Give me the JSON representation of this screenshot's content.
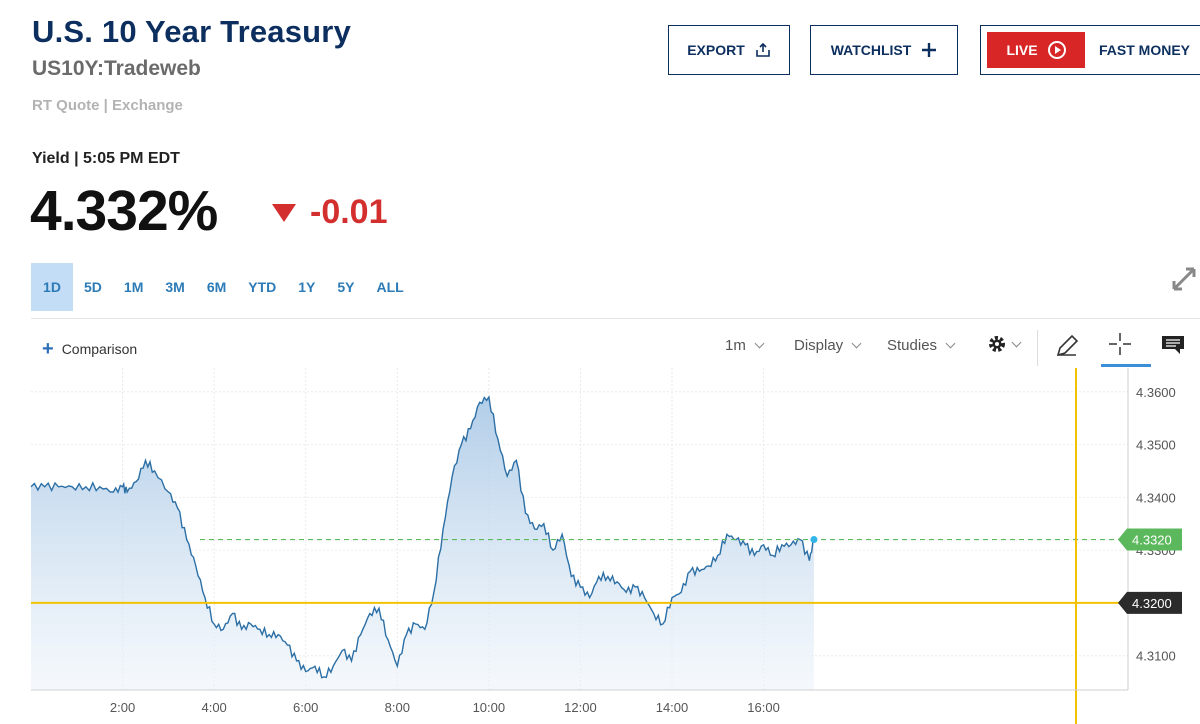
{
  "header": {
    "title": "U.S. 10 Year Treasury",
    "symbol": "US10Y:Tradeweb",
    "quote_source": "RT Quote | Exchange",
    "export_label": "EXPORT",
    "watchlist_label": "WATCHLIST",
    "live_label": "LIVE",
    "fast_money_label": "FAST MONEY"
  },
  "quote": {
    "yield_label": "Yield | 5:05 PM EDT",
    "price": "4.332%",
    "change": "-0.01",
    "change_color": "#d32f2f"
  },
  "ranges": [
    "1D",
    "5D",
    "1M",
    "3M",
    "6M",
    "YTD",
    "1Y",
    "5Y",
    "ALL"
  ],
  "active_range": "1D",
  "toolbar": {
    "comparison": "Comparison",
    "interval": "1m",
    "display": "Display",
    "studies": "Studies"
  },
  "chart_data": {
    "type": "area",
    "x_ticks": [
      "2:00",
      "4:00",
      "6:00",
      "8:00",
      "10:00",
      "12:00",
      "14:00",
      "16:00"
    ],
    "y_ticks": [
      "4.3100",
      "4.3200",
      "4.3300",
      "4.3400",
      "4.3500",
      "4.3600"
    ],
    "ylim": [
      4.3035,
      4.3645
    ],
    "xlim_hours": [
      0,
      24
    ],
    "current_value_label": "4.3320",
    "crosshair_value_label": "4.3200",
    "current_value": 4.332,
    "crosshair_value": 4.32,
    "line_color": "#2c6fa5",
    "current_color": "#5cb85c",
    "crosshair_color": "#f2c200",
    "grid": true,
    "x": [
      0,
      0.3,
      0.6,
      0.9,
      1.2,
      1.5,
      1.8,
      2.0,
      2.1,
      2.3,
      2.5,
      2.7,
      3.0,
      3.2,
      3.4,
      3.6,
      3.8,
      4.0,
      4.2,
      4.4,
      4.6,
      4.8,
      5.0,
      5.2,
      5.4,
      5.6,
      5.8,
      6.0,
      6.2,
      6.4,
      6.6,
      6.8,
      7.0,
      7.2,
      7.4,
      7.6,
      7.8,
      8.0,
      8.2,
      8.4,
      8.6,
      8.8,
      9.0,
      9.2,
      9.4,
      9.6,
      9.8,
      10.0,
      10.2,
      10.4,
      10.6,
      10.8,
      11.0,
      11.2,
      11.4,
      11.6,
      11.8,
      12.0,
      12.2,
      12.4,
      12.6,
      12.8,
      13.0,
      13.2,
      13.4,
      13.6,
      13.8,
      14.0,
      14.2,
      14.4,
      14.6,
      14.8,
      15.0,
      15.2,
      15.4,
      15.6,
      15.8,
      16.0,
      16.2,
      16.4,
      16.6,
      16.8,
      17.0,
      17.1
    ],
    "values": [
      4.342,
      4.342,
      4.342,
      4.342,
      4.342,
      4.342,
      4.341,
      4.342,
      4.341,
      4.343,
      4.347,
      4.345,
      4.341,
      4.338,
      4.332,
      4.327,
      4.321,
      4.316,
      4.315,
      4.318,
      4.315,
      4.316,
      4.315,
      4.314,
      4.314,
      4.312,
      4.309,
      4.307,
      4.308,
      4.306,
      4.308,
      4.311,
      4.309,
      4.314,
      4.318,
      4.319,
      4.313,
      4.308,
      4.314,
      4.316,
      4.315,
      4.322,
      4.334,
      4.344,
      4.35,
      4.353,
      4.358,
      4.359,
      4.351,
      4.344,
      4.347,
      4.337,
      4.334,
      4.335,
      4.33,
      4.333,
      4.325,
      4.323,
      4.321,
      4.325,
      4.325,
      4.324,
      4.322,
      4.323,
      4.321,
      4.318,
      4.316,
      4.321,
      4.322,
      4.326,
      4.326,
      4.327,
      4.329,
      4.333,
      4.332,
      4.331,
      4.329,
      4.331,
      4.329,
      4.331,
      4.331,
      4.332,
      4.328,
      4.332
    ]
  }
}
